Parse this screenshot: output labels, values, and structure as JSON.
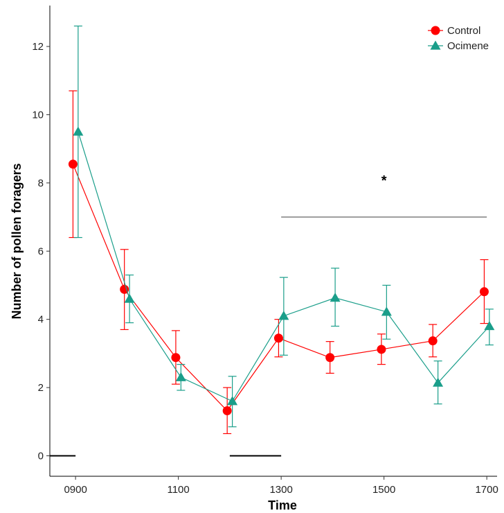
{
  "chart_data": {
    "type": "line",
    "title": "",
    "xlabel": "Time",
    "ylabel": "Number of pollen foragers",
    "x_ticks": [
      "0900",
      "1100",
      "1300",
      "1500",
      "1700"
    ],
    "y_ticks": [
      "0",
      "2",
      "4",
      "6",
      "8",
      "10",
      "12"
    ],
    "xlim": [
      850,
      1720
    ],
    "ylim": [
      -0.6,
      13.2
    ],
    "grid": false,
    "legend_position": "top-right",
    "series": [
      {
        "name": "Control",
        "color": "#ff0000",
        "marker": "circle",
        "x": [
          895,
          995,
          1095,
          1195,
          1295,
          1395,
          1495,
          1595,
          1695
        ],
        "y": [
          8.55,
          4.88,
          2.88,
          1.32,
          3.45,
          2.88,
          3.12,
          3.37,
          4.81
        ],
        "err_low": [
          6.4,
          3.7,
          2.1,
          0.65,
          2.9,
          2.42,
          2.68,
          2.9,
          3.88
        ],
        "err_high": [
          10.7,
          6.05,
          3.67,
          2.0,
          4.0,
          3.35,
          3.57,
          3.85,
          5.75
        ]
      },
      {
        "name": "Ocimene",
        "color": "#1a9e8a",
        "marker": "triangle",
        "x": [
          905,
          1005,
          1105,
          1205,
          1305,
          1405,
          1505,
          1605,
          1705
        ],
        "y": [
          9.5,
          4.6,
          2.3,
          1.6,
          4.1,
          4.63,
          4.22,
          2.14,
          3.8
        ],
        "err_low": [
          6.4,
          3.9,
          1.92,
          0.85,
          2.95,
          3.8,
          3.42,
          1.52,
          3.25
        ],
        "err_high": [
          12.6,
          5.3,
          2.68,
          2.33,
          5.23,
          5.5,
          5.0,
          2.78,
          4.3
        ]
      }
    ],
    "annotations": [
      {
        "type": "hline",
        "x": [
          1300,
          1700
        ],
        "y": 7.0,
        "color": "#555555"
      },
      {
        "type": "text",
        "text": "*",
        "x": 1500,
        "y": 8.1
      },
      {
        "type": "hline",
        "x": [
          850,
          900
        ],
        "y": 0.0,
        "color": "#000000"
      },
      {
        "type": "hline",
        "x": [
          1200,
          1300
        ],
        "y": 0.0,
        "color": "#000000"
      }
    ]
  }
}
